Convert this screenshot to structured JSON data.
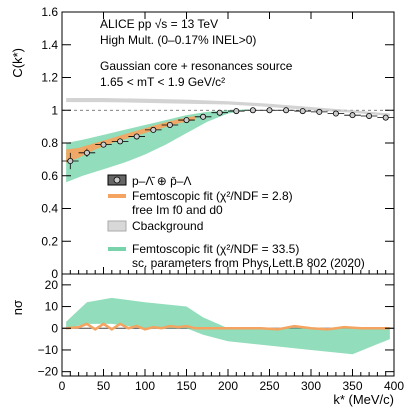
{
  "chart_data": {
    "type": "line",
    "x_label": "k* (MeV/c)",
    "x_ticks": [
      "0",
      "50",
      "100",
      "150",
      "200",
      "250",
      "300",
      "350",
      "400"
    ],
    "x_range": [
      0,
      400
    ],
    "top_panel": {
      "y_label": "C(k*)",
      "y_range": [
        0,
        1.6
      ],
      "y_ticks": [
        "0",
        "0.2",
        "0.4",
        "0.6",
        "0.8",
        "1",
        "1.2",
        "1.4",
        "1.6"
      ],
      "annotations": {
        "line1": "ALICE pp √s = 13 TeV",
        "line2": "High Mult. (0–0.17% INEL>0)",
        "line3": "Gaussian core + resonances source",
        "line4": "1.65 < mT < 1.9 GeV/c²"
      },
      "legend": {
        "data": "p–Λ̄ ⊕ p̄–Λ",
        "fit": "Femtoscopic fit (χ²/NDF = 2.8)",
        "fit_sub": "free Im f0 and d0",
        "background": "Cbackground",
        "lit": "Femtoscopic fit (χ²/NDF = 33.5)",
        "lit_sub": "sc. parameters from Phys.Lett.B 802 (2020)"
      },
      "data_points": {
        "x": [
          10,
          30,
          50,
          70,
          90,
          110,
          130,
          150,
          170,
          190,
          210,
          230,
          250,
          270,
          290,
          310,
          330,
          350,
          370,
          390
        ],
        "y": [
          0.69,
          0.74,
          0.79,
          0.81,
          0.84,
          0.88,
          0.91,
          0.94,
          0.96,
          0.985,
          0.995,
          1.0,
          1.0,
          1.0,
          0.995,
          0.99,
          0.98,
          0.97,
          0.965,
          0.955
        ],
        "yerr": [
          0.05,
          0.025,
          0.015,
          0.012,
          0.01,
          0.008,
          0.007,
          0.006,
          0.006,
          0.005,
          0.005,
          0.005,
          0.005,
          0.005,
          0.005,
          0.005,
          0.005,
          0.005,
          0.005,
          0.005
        ]
      },
      "femto_fit_band": {
        "x": [
          5,
          20,
          40,
          60,
          80,
          100,
          120,
          140,
          160
        ],
        "y_low": [
          0.68,
          0.71,
          0.76,
          0.8,
          0.83,
          0.86,
          0.89,
          0.92,
          0.94
        ],
        "y_high": [
          0.76,
          0.77,
          0.8,
          0.83,
          0.86,
          0.89,
          0.92,
          0.945,
          0.965
        ]
      },
      "background_band": {
        "x": [
          5,
          50,
          100,
          150,
          200,
          250,
          300,
          350,
          395
        ],
        "y_low": [
          1.05,
          1.05,
          1.045,
          1.04,
          1.035,
          1.02,
          1.0,
          0.985,
          0.965
        ],
        "y_high": [
          1.075,
          1.075,
          1.07,
          1.065,
          1.055,
          1.04,
          1.02,
          1.0,
          0.98
        ]
      },
      "lit_fit_band": {
        "x": [
          5,
          25,
          50,
          75,
          100,
          125,
          150,
          175,
          200,
          225
        ],
        "y_low": [
          0.56,
          0.6,
          0.64,
          0.68,
          0.73,
          0.79,
          0.86,
          0.93,
          0.98,
          1.0
        ],
        "y_high": [
          0.8,
          0.82,
          0.85,
          0.88,
          0.91,
          0.94,
          0.97,
          0.99,
          1.0,
          1.005
        ]
      }
    },
    "bottom_panel": {
      "y_label": "nσ",
      "y_range": [
        -22,
        25
      ],
      "y_ticks": [
        "−20",
        "−10",
        "0",
        "10",
        "20"
      ],
      "fit_band": {
        "x": [
          5,
          20,
          30,
          40,
          50,
          60,
          70,
          80,
          90,
          100,
          110,
          120,
          130,
          140,
          150,
          160,
          180,
          200,
          220,
          240,
          260,
          280,
          300,
          320,
          340,
          360,
          380,
          395
        ],
        "y": [
          0,
          0.5,
          2,
          -0.5,
          2,
          -0.5,
          2,
          0,
          1,
          -0.5,
          0.5,
          0,
          1,
          0.5,
          1,
          0,
          0,
          0,
          0,
          0,
          -0.5,
          1,
          0,
          -0.5,
          0.5,
          0,
          0,
          0
        ]
      },
      "lit_band": {
        "x": [
          5,
          30,
          60,
          100,
          150,
          170,
          200,
          250,
          300,
          350,
          395
        ],
        "y_low": [
          0,
          2,
          2,
          0,
          0,
          -3,
          -6,
          -8,
          -10,
          -12,
          -5
        ],
        "y_high": [
          3,
          12,
          14,
          12,
          10,
          5,
          0,
          0,
          0,
          0,
          0
        ]
      }
    },
    "colors": {
      "fit": "#f4a460",
      "lit": "#77d4aa",
      "background": "#c8c8c8",
      "data_marker": "#666666"
    }
  }
}
